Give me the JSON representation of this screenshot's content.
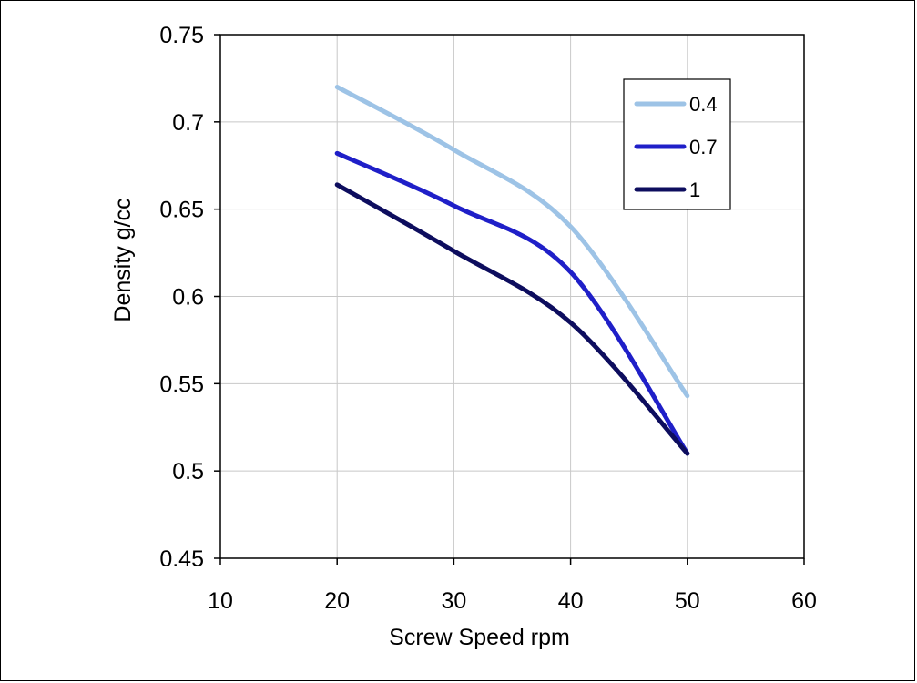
{
  "chart_data": {
    "type": "line",
    "title": "",
    "xlabel": "Screw Speed rpm",
    "ylabel": "Density g/cc",
    "xlim": [
      10,
      60
    ],
    "ylim": [
      0.45,
      0.75
    ],
    "xticks": [
      10,
      20,
      30,
      40,
      50,
      60
    ],
    "yticks": [
      0.45,
      0.5,
      0.55,
      0.6,
      0.65,
      0.7,
      0.75
    ],
    "xtick_labels": [
      "10",
      "20",
      "30",
      "40",
      "50",
      "60"
    ],
    "ytick_labels": [
      "0.45",
      "0.5",
      "0.55",
      "0.6",
      "0.65",
      "0.7",
      "0.75"
    ],
    "grid": true,
    "smooth": true,
    "legend_position": "top-right",
    "series": [
      {
        "name": "0.4",
        "color": "#9dc3e6",
        "x": [
          20,
          30,
          40,
          50
        ],
        "y": [
          0.72,
          0.684,
          0.64,
          0.543
        ]
      },
      {
        "name": "0.7",
        "color": "#1f1fc8",
        "x": [
          20,
          30,
          40,
          50
        ],
        "y": [
          0.682,
          0.652,
          0.614,
          0.51
        ]
      },
      {
        "name": "1",
        "color": "#0d0d5e",
        "x": [
          20,
          30,
          40,
          50
        ],
        "y": [
          0.664,
          0.626,
          0.585,
          0.51
        ]
      }
    ]
  }
}
